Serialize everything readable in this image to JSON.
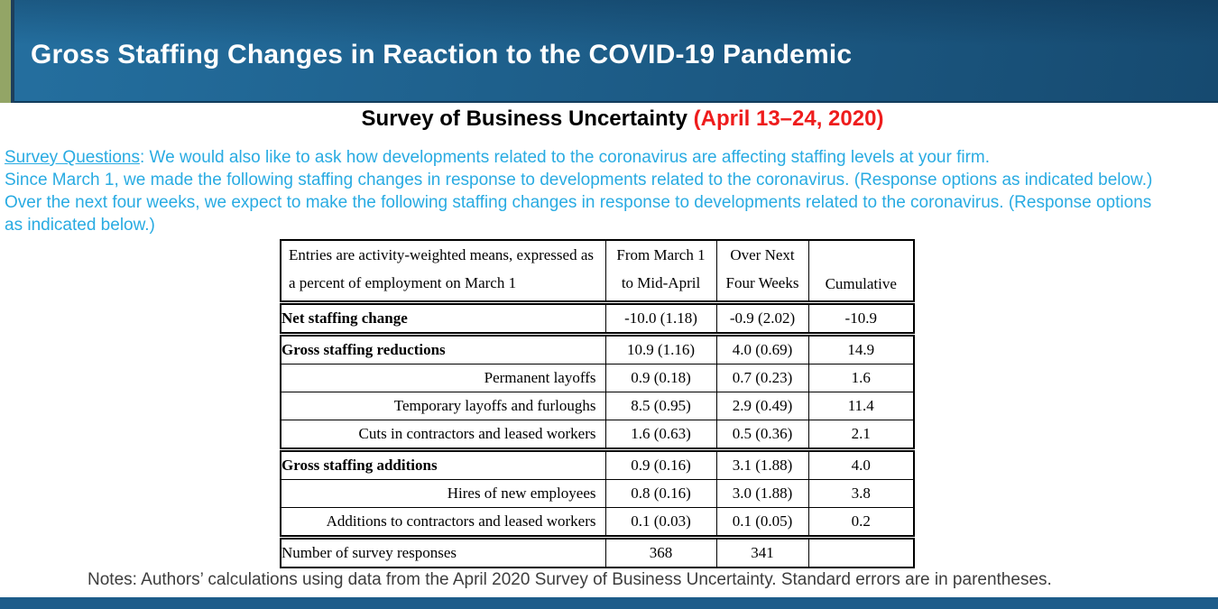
{
  "header": {
    "title": "Gross Staffing Changes in Reaction to the COVID-19 Pandemic"
  },
  "subtitle": {
    "text": "Survey of Business Uncertainty ",
    "date": "(April 13–24, 2020)"
  },
  "survey": {
    "label": "Survey Questions",
    "intro_rest": ": We would also like to ask how developments related to the coronavirus are affecting staffing levels at your firm.",
    "line2": "Since March 1, we made the following staffing changes in response to developments related to the coronavirus. (Response options as indicated below.)",
    "line3a": "Over the next four weeks, we expect to make the following staffing changes in response to developments related to the coronavirus. (Response options",
    "line3b": "as indicated below.)"
  },
  "table": {
    "header": {
      "col1_line1": "Entries are activity-weighted means, expressed as",
      "col1_line2": "a percent of employment on March 1",
      "col2_line1": "From March 1",
      "col2_line2": "to Mid-April",
      "col3_line1": "Over Next",
      "col3_line2": "Four Weeks",
      "col4": "Cumulative"
    },
    "rows": [
      {
        "label": "Net staffing change",
        "style": "bold",
        "values": [
          "-10.0 (1.18)",
          "-0.9 (2.02)",
          "-10.9"
        ],
        "rule_below": "double"
      },
      {
        "label": "Gross staffing reductions",
        "style": "bold",
        "values": [
          "10.9 (1.16)",
          "4.0 (0.69)",
          "14.9"
        ],
        "rule_below": "single"
      },
      {
        "label": "Permanent layoffs",
        "style": "sub",
        "values": [
          "0.9 (0.18)",
          "0.7 (0.23)",
          "1.6"
        ],
        "rule_below": "single"
      },
      {
        "label": "Temporary layoffs and furloughs",
        "style": "sub",
        "values": [
          "8.5 (0.95)",
          "2.9 (0.49)",
          "11.4"
        ],
        "rule_below": "single"
      },
      {
        "label": "Cuts in contractors and leased workers",
        "style": "sub",
        "values": [
          "1.6 (0.63)",
          "0.5 (0.36)",
          "2.1"
        ],
        "rule_below": "double"
      },
      {
        "label": "Gross staffing additions",
        "style": "bold",
        "values": [
          "0.9 (0.16)",
          "3.1 (1.88)",
          "4.0"
        ],
        "rule_below": "single"
      },
      {
        "label": "Hires of new employees",
        "style": "sub",
        "values": [
          "0.8 (0.16)",
          "3.0 (1.88)",
          "3.8"
        ],
        "rule_below": "single"
      },
      {
        "label": "Additions to contractors and leased workers",
        "style": "sub",
        "values": [
          "0.1 (0.03)",
          "0.1 (0.05)",
          "0.2"
        ],
        "rule_below": "double"
      },
      {
        "label": "Number of survey responses",
        "style": "plain",
        "values": [
          "368",
          "341",
          ""
        ],
        "rule_below": "none"
      }
    ]
  },
  "notes": "Notes: Authors’ calculations using data from the April 2020 Survey of Business Uncertainty. Standard errors are in parentheses.",
  "colors": {
    "header_blue_dark": "#164a70",
    "header_blue_light": "#246f9f",
    "accent_green": "#93a566",
    "survey_text": "#29abe2",
    "subtitle_date_red": "#ee1c1c",
    "notes_text": "#3d3d3d",
    "footer_blue": "#1d5c8a"
  }
}
